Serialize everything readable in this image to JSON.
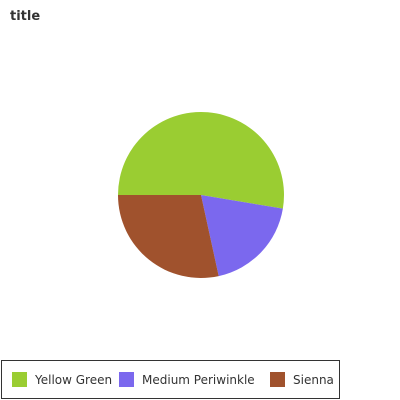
{
  "chart_data": {
    "type": "pie",
    "title": "title",
    "categories": [
      "Yellow Green",
      "Medium Periwinkle",
      "Sienna"
    ],
    "values": [
      50,
      18,
      27
    ],
    "colors": [
      "#9acd32",
      "#7b68ee",
      "#a0522d"
    ],
    "legend_position": "bottom",
    "start_angle_deg": 180,
    "direction": "clockwise"
  }
}
